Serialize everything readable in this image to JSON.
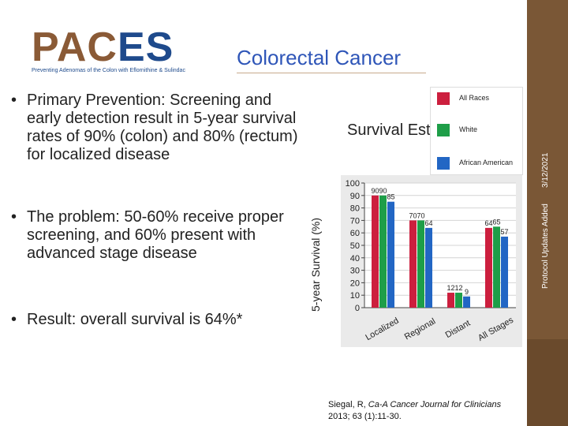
{
  "logo": {
    "word_part1": "PAC",
    "word_part2": "ES",
    "subtitle": "Preventing Adenomas of the Colon with Eflornithine & Sulindac"
  },
  "header": {
    "title": "Colorectal Cancer"
  },
  "sidebar": {
    "date": "3/12/2021",
    "label": "Protocol Updates Added"
  },
  "bullets": [
    {
      "marker": "•",
      "text": "Primary Prevention: Screening and early detection result in 5-year survival rates of 90% (colon) and 80% (rectum) for localized disease"
    },
    {
      "marker": "•",
      "text": "The problem: 50-60% receive proper screening, and 60% present with advanced stage disease"
    },
    {
      "marker": "•",
      "text": "Result: overall survival is 64%*"
    }
  ],
  "chart_heading": "Survival Estimates",
  "outer_ylabel": "5-year Survival (%)",
  "citation": {
    "authors": "Siegal, R, ",
    "journal": "Ca-A Cancer Journal for Clinicians",
    "details": " 2013; 63 (1):11-30."
  },
  "colors": {
    "all_races": "#cc1f3e",
    "white": "#1e9e48",
    "african_american": "#2266c4",
    "sidebar": "#7a5736",
    "title": "#2f56b8"
  },
  "chart_data": {
    "type": "bar",
    "title": "",
    "xlabel": "",
    "ylabel": "5-year Survival (%)",
    "ylim": [
      0,
      100
    ],
    "yticks": [
      "0",
      "10",
      "20",
      "30",
      "40",
      "50",
      "60",
      "70",
      "80",
      "90",
      "100"
    ],
    "categories": [
      "Localized",
      "Regional",
      "Distant",
      "All Stages"
    ],
    "series": [
      {
        "name": "All Races",
        "values": [
          90,
          70,
          12,
          64
        ],
        "labels": [
          "90",
          "70",
          "12",
          "64"
        ]
      },
      {
        "name": "White",
        "values": [
          90,
          70,
          12,
          65
        ],
        "labels": [
          "90",
          "70",
          "12",
          "65"
        ]
      },
      {
        "name": "African American",
        "values": [
          85,
          64,
          9,
          57
        ],
        "labels": [
          "85",
          "64",
          "9",
          "57"
        ]
      }
    ],
    "legend": "top-right"
  }
}
